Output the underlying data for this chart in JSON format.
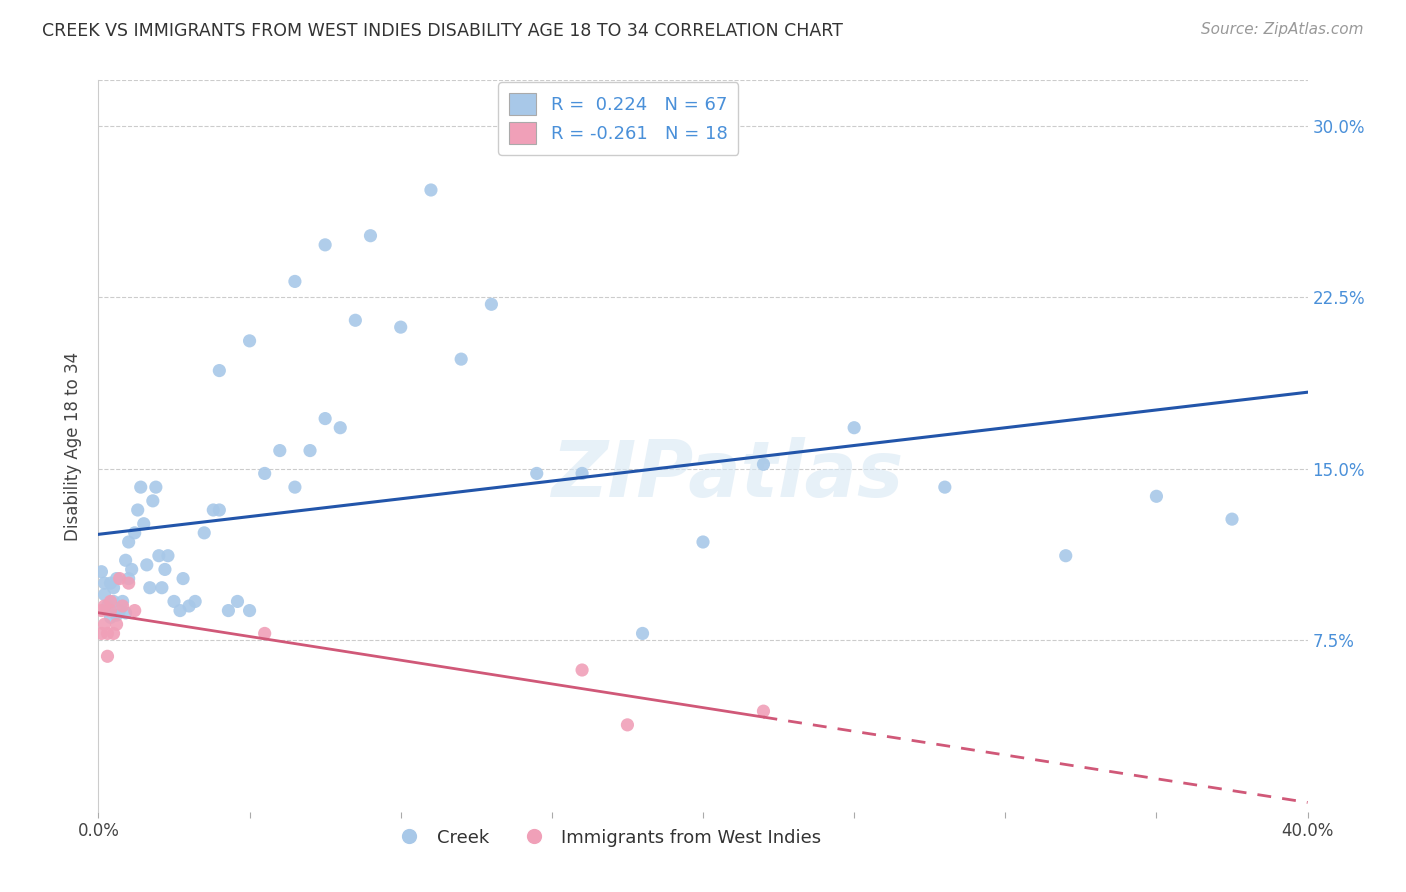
{
  "title": "CREEK VS IMMIGRANTS FROM WEST INDIES DISABILITY AGE 18 TO 34 CORRELATION CHART",
  "source": "Source: ZipAtlas.com",
  "ylabel": "Disability Age 18 to 34",
  "xlim": [
    0.0,
    0.4
  ],
  "ylim": [
    0.0,
    0.32
  ],
  "yticks": [
    0.075,
    0.15,
    0.225,
    0.3
  ],
  "ytick_labels": [
    "7.5%",
    "15.0%",
    "22.5%",
    "30.0%"
  ],
  "xtick_positions": [
    0.0,
    0.05,
    0.1,
    0.15,
    0.2,
    0.25,
    0.3,
    0.35,
    0.4
  ],
  "blue_color": "#a8c8e8",
  "blue_line_color": "#2255aa",
  "pink_color": "#f0a0b8",
  "pink_line_color": "#d05878",
  "watermark": "ZIPatlas",
  "creek_legend": "Creek",
  "west_indies_legend": "Immigrants from West Indies",
  "creek_x": [
    0.001,
    0.002,
    0.002,
    0.003,
    0.003,
    0.004,
    0.004,
    0.005,
    0.005,
    0.006,
    0.006,
    0.007,
    0.008,
    0.009,
    0.009,
    0.01,
    0.01,
    0.011,
    0.012,
    0.013,
    0.014,
    0.015,
    0.016,
    0.017,
    0.018,
    0.019,
    0.02,
    0.021,
    0.022,
    0.023,
    0.025,
    0.027,
    0.028,
    0.03,
    0.032,
    0.035,
    0.038,
    0.04,
    0.043,
    0.046,
    0.05,
    0.055,
    0.06,
    0.065,
    0.07,
    0.075,
    0.08,
    0.09,
    0.1,
    0.11,
    0.12,
    0.13,
    0.145,
    0.16,
    0.18,
    0.2,
    0.22,
    0.25,
    0.28,
    0.32,
    0.35,
    0.375,
    0.04,
    0.05,
    0.065,
    0.075,
    0.085
  ],
  "creek_y": [
    0.105,
    0.1,
    0.095,
    0.09,
    0.088,
    0.1,
    0.085,
    0.092,
    0.098,
    0.086,
    0.102,
    0.088,
    0.092,
    0.087,
    0.11,
    0.102,
    0.118,
    0.106,
    0.122,
    0.132,
    0.142,
    0.126,
    0.108,
    0.098,
    0.136,
    0.142,
    0.112,
    0.098,
    0.106,
    0.112,
    0.092,
    0.088,
    0.102,
    0.09,
    0.092,
    0.122,
    0.132,
    0.132,
    0.088,
    0.092,
    0.088,
    0.148,
    0.158,
    0.142,
    0.158,
    0.172,
    0.168,
    0.252,
    0.212,
    0.272,
    0.198,
    0.222,
    0.148,
    0.148,
    0.078,
    0.118,
    0.152,
    0.168,
    0.142,
    0.112,
    0.138,
    0.128,
    0.193,
    0.206,
    0.232,
    0.248,
    0.215
  ],
  "wi_x": [
    0.001,
    0.001,
    0.002,
    0.002,
    0.003,
    0.003,
    0.004,
    0.004,
    0.005,
    0.006,
    0.007,
    0.008,
    0.01,
    0.012,
    0.055,
    0.16,
    0.175,
    0.22
  ],
  "wi_y": [
    0.088,
    0.078,
    0.09,
    0.082,
    0.078,
    0.068,
    0.088,
    0.092,
    0.078,
    0.082,
    0.102,
    0.09,
    0.1,
    0.088,
    0.078,
    0.062,
    0.038,
    0.044
  ]
}
